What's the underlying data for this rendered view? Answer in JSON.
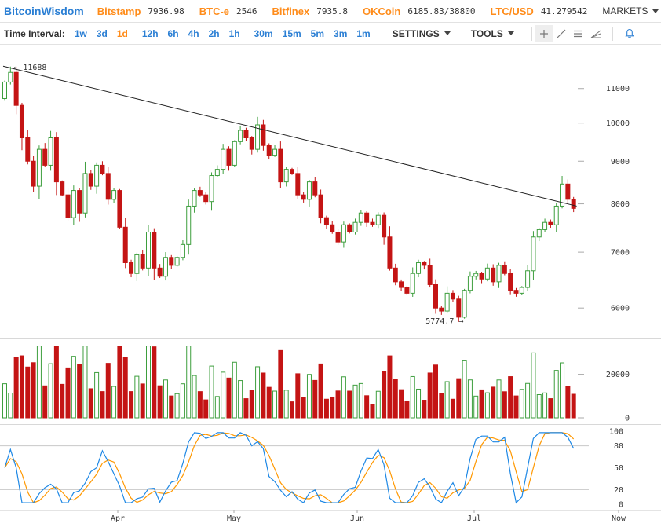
{
  "header": {
    "brand": "BitcoinWisdom",
    "tickers": [
      {
        "name": "Bitstamp",
        "value": "7936.98"
      },
      {
        "name": "BTC-e",
        "value": "2546"
      },
      {
        "name": "Bitfinex",
        "value": "7935.8"
      },
      {
        "name": "OKCoin",
        "value": "6185.83/38800"
      },
      {
        "name": "LTC/USD",
        "value": "41.279542"
      }
    ],
    "markets_label": "MARKETS"
  },
  "toolbar": {
    "interval_label": "Time Interval:",
    "intervals": [
      "1w",
      "3d",
      "1d",
      "12h",
      "6h",
      "4h",
      "2h",
      "1h",
      "30m",
      "15m",
      "5m",
      "3m",
      "1m"
    ],
    "active_interval": "1d",
    "settings_label": "SETTINGS",
    "tools_label": "TOOLS",
    "tool_icons": [
      "crosshair-icon",
      "draw-line-icon",
      "horizontal-lines-icon",
      "fan-icon",
      "alarm-bell-icon"
    ]
  },
  "colors": {
    "up": "#3d9e3d",
    "down": "#c41414",
    "volume_up_fill": "#ffffff",
    "stoch_k": "#1e88e5",
    "stoch_d": "#ff9800",
    "trendline": "#222222"
  },
  "chart_data": [
    {
      "type": "candlestick",
      "title": "",
      "ylim": [
        5600,
        12200
      ],
      "y_scale": "log",
      "y_ticks": [
        6000,
        7000,
        8000,
        9000,
        10000,
        11000
      ],
      "x_labels": [
        "Apr",
        "May",
        "Jun",
        "Jul",
        "Now"
      ],
      "annotations": {
        "high_label": "11688",
        "low_label": "5774.7"
      },
      "trendline": {
        "from": 11700,
        "to": 7950
      },
      "closes": [
        11200,
        11500,
        10500,
        9600,
        9000,
        8400,
        9300,
        8900,
        9600,
        8500,
        8200,
        7700,
        8300,
        7800,
        8700,
        8400,
        8900,
        8700,
        8100,
        8300,
        7500,
        6800,
        6600,
        6950,
        6700,
        7400,
        6700,
        6550,
        6900,
        6750,
        6900,
        7150,
        7950,
        8300,
        8200,
        8050,
        8650,
        8800,
        9300,
        8900,
        9500,
        9800,
        9600,
        9300,
        9950,
        9400,
        9150,
        9300,
        8500,
        8800,
        8700,
        8200,
        8100,
        8500,
        8200,
        7700,
        7550,
        7400,
        7200,
        7550,
        7400,
        7600,
        7800,
        7600,
        7550,
        7750,
        7300,
        6700,
        6450,
        6350,
        6250,
        6600,
        6800,
        6750,
        6400,
        6000,
        5950,
        6250,
        6150,
        5850,
        6300,
        6550,
        6600,
        6500,
        6700,
        6450,
        6750,
        6600,
        6300,
        6250,
        6350,
        6650,
        7300,
        7450,
        7600,
        7550,
        7950,
        8450,
        8100,
        7900
      ],
      "volume": {
        "ylim": [
          0,
          35000
        ],
        "y_ticks": [
          0,
          20000
        ]
      },
      "stochastic": {
        "ylim": [
          0,
          100
        ],
        "y_ticks": [
          0,
          20,
          50,
          80,
          100
        ]
      }
    }
  ]
}
